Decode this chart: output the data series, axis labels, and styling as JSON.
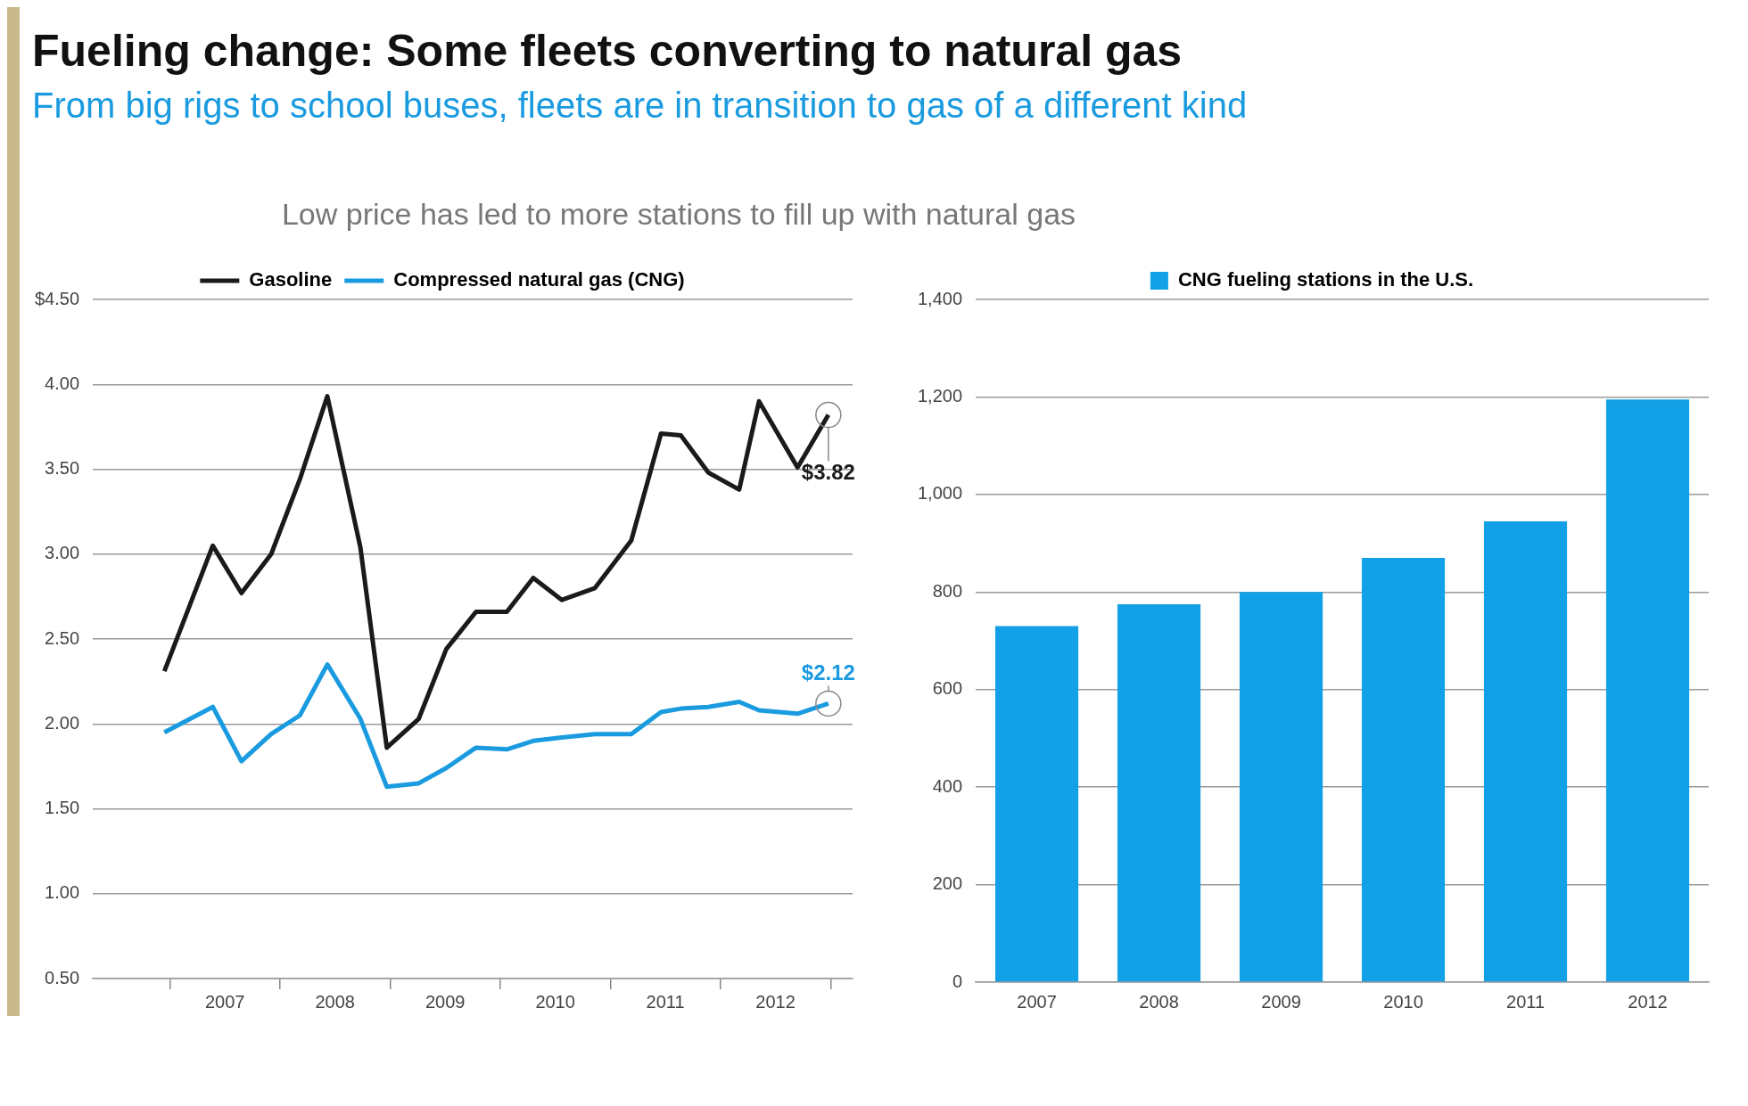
{
  "chart_data": [
    {
      "type": "line",
      "title": "Fueling change: Some fleets converting to natural gas",
      "subtitle": "From big rigs to school buses, fleets are in transition to gas of a different kind",
      "annotations": [
        "Low price has led to more stations to fill up with natural gas",
        {
          "text": "$3.82",
          "x": 2012.98,
          "y": 3.82
        },
        {
          "text": "$2.12",
          "x": 2012.98,
          "y": 2.12
        }
      ],
      "x": [
        2006.95,
        2007.39,
        2007.65,
        2007.92,
        2008.18,
        2008.43,
        2008.73,
        2008.97,
        2009.26,
        2009.51,
        2009.78,
        2010.06,
        2010.3,
        2010.56,
        2010.86,
        2011.19,
        2011.46,
        2011.64,
        2011.89,
        2012.17,
        2012.35,
        2012.7,
        2012.98
      ],
      "series": [
        {
          "name": "Gasoline",
          "color": "#1a1a1a",
          "values": [
            2.31,
            3.05,
            2.77,
            3.0,
            3.44,
            3.93,
            3.04,
            1.86,
            2.03,
            2.44,
            2.66,
            2.66,
            2.86,
            2.73,
            2.8,
            3.08,
            3.71,
            3.7,
            3.48,
            3.38,
            3.9,
            3.51,
            3.82
          ]
        },
        {
          "name": "Compressed natural gas (CNG)",
          "color": "#1a9be0",
          "values": [
            1.95,
            2.1,
            1.78,
            1.94,
            2.05,
            2.35,
            2.03,
            1.63,
            1.65,
            1.74,
            1.86,
            1.85,
            1.9,
            1.92,
            1.94,
            1.94,
            2.07,
            2.09,
            2.1,
            2.13,
            2.08,
            2.06,
            2.12
          ]
        }
      ],
      "xlim": [
        2006.3,
        2013.2
      ],
      "xticks": [
        {
          "value": 2007,
          "label": null
        },
        {
          "value": 2007.5,
          "label": "2007"
        },
        {
          "value": 2008,
          "label": null
        },
        {
          "value": 2008.5,
          "label": "2008"
        },
        {
          "value": 2009,
          "label": null
        },
        {
          "value": 2009.5,
          "label": "2009"
        },
        {
          "value": 2010,
          "label": null
        },
        {
          "value": 2010.5,
          "label": "2010"
        },
        {
          "value": 2011,
          "label": null
        },
        {
          "value": 2011.5,
          "label": "2011"
        },
        {
          "value": 2012,
          "label": null
        },
        {
          "value": 2012.5,
          "label": "2012"
        },
        {
          "value": 2013,
          "label": null
        }
      ],
      "ylim": [
        0.5,
        4.5
      ],
      "yticks": [
        {
          "value": 0.5,
          "label": "0.50"
        },
        {
          "value": 1,
          "label": "1.00"
        },
        {
          "value": 1.5,
          "label": "1.50"
        },
        {
          "value": 2,
          "label": "2.00"
        },
        {
          "value": 2.5,
          "label": "2.50"
        },
        {
          "value": 3,
          "label": "3.00"
        },
        {
          "value": 3.5,
          "label": "3.50"
        },
        {
          "value": 4,
          "label": "4.00"
        },
        {
          "value": 4.5,
          "label": "$4.50"
        }
      ],
      "grid": "y",
      "legend": "top",
      "marker": "none",
      "line_style": "solid"
    },
    {
      "type": "bar",
      "categories": [
        "2007",
        "2008",
        "2009",
        "2010",
        "2011",
        "2012"
      ],
      "series": [
        {
          "name": "CNG fueling stations in the U.S.",
          "color": "#12a0e6",
          "values": [
            730,
            775,
            800,
            870,
            945,
            1195
          ]
        }
      ],
      "ylim": [
        0,
        1400
      ],
      "yticks": [
        0,
        200,
        400,
        600,
        800,
        {
          "value": 1000,
          "label": "1,000"
        },
        {
          "value": 1200,
          "label": "1,200"
        },
        {
          "value": 1400,
          "label": "1,400"
        }
      ],
      "grid": "y",
      "legend": "top"
    }
  ]
}
